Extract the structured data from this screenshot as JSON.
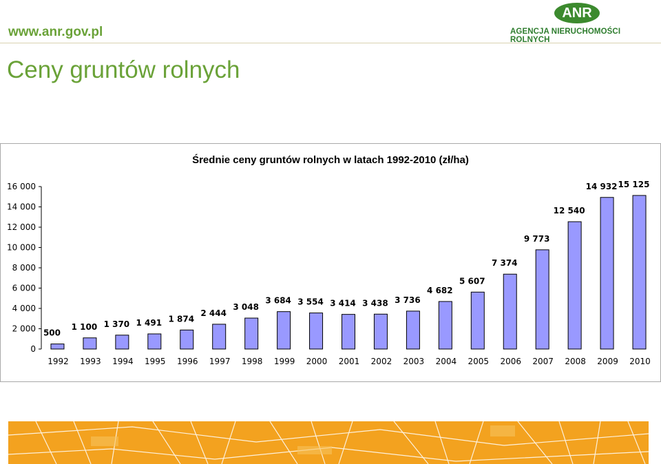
{
  "header": {
    "url": "www.anr.gov.pl",
    "logo_text": "ANR",
    "agency_name": "AGENCJA NIERUCHOMOŚCI ROLNYCH"
  },
  "page_title": "Ceny gruntów rolnych",
  "chart_data": {
    "type": "bar",
    "title": "Średnie ceny gruntów rolnych w latach 1992-2010 (zł/ha)",
    "xlabel": "",
    "ylabel": "",
    "categories": [
      "1992",
      "1993",
      "1994",
      "1995",
      "1996",
      "1997",
      "1998",
      "1999",
      "2000",
      "2001",
      "2002",
      "2003",
      "2004",
      "2005",
      "2006",
      "2007",
      "2008",
      "2009",
      "2010"
    ],
    "values": [
      500,
      1100,
      1370,
      1491,
      1874,
      2444,
      3048,
      3684,
      3554,
      3414,
      3438,
      3736,
      4682,
      5607,
      7374,
      9773,
      12540,
      14932,
      15125
    ],
    "value_labels": [
      "500",
      "1 100",
      "1 370",
      "1 491",
      "1 874",
      "2 444",
      "3 048",
      "3 684",
      "3 554",
      "3 414",
      "3 438",
      "3 736",
      "4 682",
      "5 607",
      "7 374",
      "9 773",
      "12 540",
      "14 932",
      "15 125"
    ],
    "y_ticks": [
      "0",
      "2 000",
      "4 000",
      "6 000",
      "8 000",
      "10 000",
      "12 000",
      "14 000",
      "16 000"
    ],
    "ylim": [
      0,
      16000
    ],
    "grid": false,
    "legend": "none",
    "bar_color": "#9999ff",
    "bar_edge_color": "#000000"
  }
}
